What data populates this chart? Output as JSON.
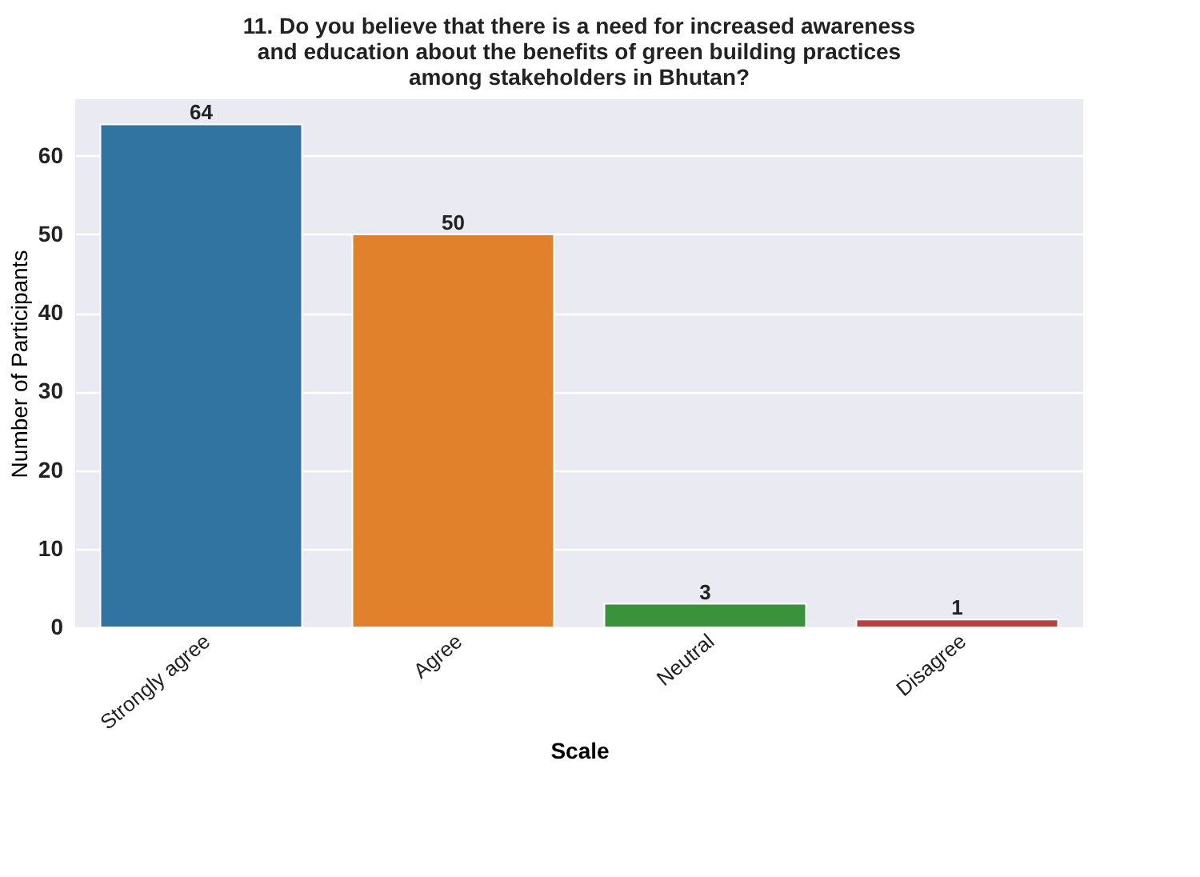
{
  "chart_data": {
    "type": "bar",
    "title": "11. Do you believe that there is a need for increased awareness\nand education about the benefits of green building practices\namong stakeholders in Bhutan?",
    "xlabel": "Scale",
    "ylabel": "Number of Participants",
    "categories": [
      "Strongly agree",
      "Agree",
      "Neutral",
      "Disagree"
    ],
    "values": [
      64,
      50,
      3,
      1
    ],
    "colors": [
      "#3274a1",
      "#e1812c",
      "#3a923a",
      "#c03d3e"
    ],
    "ylim": [
      0,
      67.2
    ],
    "yticks": [
      0,
      10,
      20,
      30,
      40,
      50,
      60
    ],
    "grid": "y",
    "data_labels": true
  }
}
